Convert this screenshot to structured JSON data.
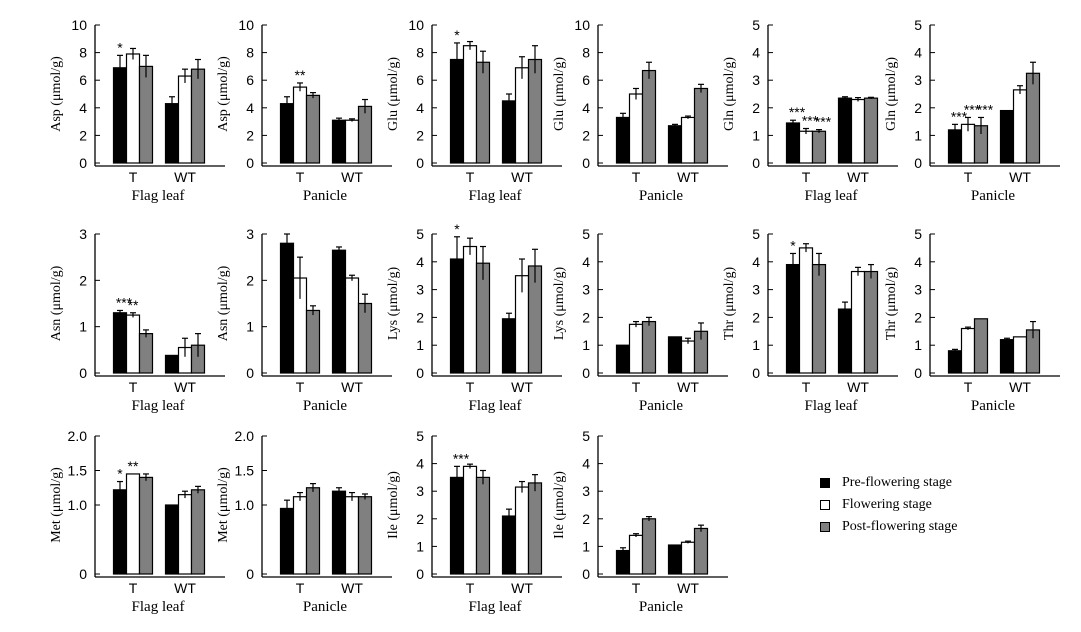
{
  "colors": {
    "pre": "#000000",
    "flowering": "#ffffff",
    "post": "#808080",
    "stroke": "#000000"
  },
  "legend": [
    {
      "key": "pre",
      "label": "Pre-flowering stage"
    },
    {
      "key": "flowering",
      "label": "Flowering stage"
    },
    {
      "key": "post",
      "label": "Post-flowering stage"
    }
  ],
  "chart_data": [
    {
      "type": "bar",
      "ylabel": "Asp (μmol/g)",
      "xlabel": "Flag leaf",
      "categories": [
        "T",
        "WT"
      ],
      "ylim": [
        0,
        10
      ],
      "yticks": [
        0,
        2,
        4,
        6,
        8,
        10
      ],
      "series": [
        {
          "name": "Pre-flowering stage",
          "values": [
            6.9,
            4.3
          ],
          "errors": [
            0.9,
            0.5
          ]
        },
        {
          "name": "Flowering stage",
          "values": [
            7.9,
            6.3
          ],
          "errors": [
            0.4,
            0.5
          ]
        },
        {
          "name": "Post-flowering stage",
          "values": [
            7.0,
            6.8
          ],
          "errors": [
            0.8,
            0.7
          ]
        }
      ],
      "annotations": [
        {
          "category": 0,
          "series": 0,
          "text": "*"
        }
      ]
    },
    {
      "type": "bar",
      "ylabel": "Asp (μmol/g)",
      "xlabel": "Panicle",
      "categories": [
        "T",
        "WT"
      ],
      "ylim": [
        0,
        10
      ],
      "yticks": [
        0,
        2,
        4,
        6,
        8,
        10
      ],
      "series": [
        {
          "name": "Pre-flowering stage",
          "values": [
            4.3,
            3.1
          ],
          "errors": [
            0.5,
            0.15
          ]
        },
        {
          "name": "Flowering stage",
          "values": [
            5.5,
            3.1
          ],
          "errors": [
            0.3,
            0.1
          ]
        },
        {
          "name": "Post-flowering stage",
          "values": [
            4.9,
            4.1
          ],
          "errors": [
            0.2,
            0.5
          ]
        }
      ],
      "annotations": [
        {
          "category": 0,
          "series": 1,
          "text": "**"
        }
      ]
    },
    {
      "type": "bar",
      "ylabel": "Glu (μmol/g)",
      "xlabel": "Flag leaf",
      "categories": [
        "T",
        "WT"
      ],
      "ylim": [
        0,
        10
      ],
      "yticks": [
        0,
        2,
        4,
        6,
        8,
        10
      ],
      "series": [
        {
          "name": "Pre-flowering stage",
          "values": [
            7.5,
            4.5
          ],
          "errors": [
            1.2,
            0.5
          ]
        },
        {
          "name": "Flowering stage",
          "values": [
            8.5,
            6.9
          ],
          "errors": [
            0.3,
            0.8
          ]
        },
        {
          "name": "Post-flowering stage",
          "values": [
            7.3,
            7.5
          ],
          "errors": [
            0.8,
            1.0
          ]
        }
      ],
      "annotations": [
        {
          "category": 0,
          "series": 0,
          "text": "*"
        }
      ]
    },
    {
      "type": "bar",
      "ylabel": "Glu (μmol/g)",
      "xlabel": "Panicle",
      "categories": [
        "T",
        "WT"
      ],
      "ylim": [
        0,
        10
      ],
      "yticks": [
        0,
        2,
        4,
        6,
        8,
        10
      ],
      "series": [
        {
          "name": "Pre-flowering stage",
          "values": [
            3.3,
            2.7
          ],
          "errors": [
            0.3,
            0.1
          ]
        },
        {
          "name": "Flowering stage",
          "values": [
            5.0,
            3.3
          ],
          "errors": [
            0.4,
            0.1
          ]
        },
        {
          "name": "Post-flowering stage",
          "values": [
            6.7,
            5.4
          ],
          "errors": [
            0.6,
            0.3
          ]
        }
      ],
      "annotations": []
    },
    {
      "type": "bar",
      "ylabel": "Gln (μmol/g)",
      "xlabel": "Flag leaf",
      "categories": [
        "T",
        "WT"
      ],
      "ylim": [
        0,
        5
      ],
      "yticks": [
        0,
        1,
        2,
        3,
        4,
        5
      ],
      "series": [
        {
          "name": "Pre-flowering stage",
          "values": [
            1.45,
            2.35
          ],
          "errors": [
            0.1,
            0.05
          ]
        },
        {
          "name": "Flowering stage",
          "values": [
            1.15,
            2.3
          ],
          "errors": [
            0.1,
            0.07
          ]
        },
        {
          "name": "Post-flowering stage",
          "values": [
            1.15,
            2.35
          ],
          "errors": [
            0.06,
            0.03
          ]
        }
      ],
      "annotations": [
        {
          "category": 0,
          "series": 0,
          "text": "***"
        },
        {
          "category": 0,
          "series": 1,
          "text": "***"
        },
        {
          "category": 0,
          "series": 2,
          "text": "***"
        }
      ]
    },
    {
      "type": "bar",
      "ylabel": "Gln (μmol/g)",
      "xlabel": "Panicle",
      "categories": [
        "T",
        "WT"
      ],
      "ylim": [
        0,
        5
      ],
      "yticks": [
        0,
        1,
        2,
        3,
        4,
        5
      ],
      "series": [
        {
          "name": "Pre-flowering stage",
          "values": [
            1.2,
            1.9
          ],
          "errors": [
            0.2,
            0.0
          ]
        },
        {
          "name": "Flowering stage",
          "values": [
            1.4,
            2.65
          ],
          "errors": [
            0.25,
            0.15
          ]
        },
        {
          "name": "Post-flowering stage",
          "values": [
            1.35,
            3.25
          ],
          "errors": [
            0.3,
            0.4
          ]
        }
      ],
      "annotations": [
        {
          "category": 0,
          "series": 0,
          "text": "***"
        },
        {
          "category": 0,
          "series": 1,
          "text": "***"
        },
        {
          "category": 0,
          "series": 2,
          "text": "***"
        }
      ]
    },
    {
      "type": "bar",
      "ylabel": "Asn (μmol/g)",
      "xlabel": "Flag leaf",
      "categories": [
        "T",
        "WT"
      ],
      "ylim": [
        0,
        3
      ],
      "yticks": [
        0,
        1,
        2,
        3
      ],
      "series": [
        {
          "name": "Pre-flowering stage",
          "values": [
            1.3,
            0.38
          ],
          "errors": [
            0.05,
            0.0
          ]
        },
        {
          "name": "Flowering stage",
          "values": [
            1.25,
            0.55
          ],
          "errors": [
            0.05,
            0.2
          ]
        },
        {
          "name": "Post-flowering stage",
          "values": [
            0.85,
            0.6
          ],
          "errors": [
            0.08,
            0.25
          ]
        }
      ],
      "annotations": [
        {
          "category": 0,
          "series": 0,
          "text": "***"
        },
        {
          "category": 0,
          "series": 1,
          "text": "**"
        }
      ]
    },
    {
      "type": "bar",
      "ylabel": "Asn (μmol/g)",
      "xlabel": "Panicle",
      "categories": [
        "T",
        "WT"
      ],
      "ylim": [
        0,
        3
      ],
      "yticks": [
        0,
        1,
        2,
        3
      ],
      "series": [
        {
          "name": "Pre-flowering stage",
          "values": [
            2.8,
            2.65
          ],
          "errors": [
            0.2,
            0.07
          ]
        },
        {
          "name": "Flowering stage",
          "values": [
            2.05,
            2.05
          ],
          "errors": [
            0.45,
            0.06
          ]
        },
        {
          "name": "Post-flowering stage",
          "values": [
            1.35,
            1.5
          ],
          "errors": [
            0.1,
            0.2
          ]
        }
      ],
      "annotations": []
    },
    {
      "type": "bar",
      "ylabel": "Lys (μmol/g)",
      "xlabel": "Flag leaf",
      "categories": [
        "T",
        "WT"
      ],
      "ylim": [
        0,
        5
      ],
      "yticks": [
        0,
        1,
        2,
        3,
        4,
        5
      ],
      "series": [
        {
          "name": "Pre-flowering stage",
          "values": [
            4.1,
            1.95
          ],
          "errors": [
            0.8,
            0.2
          ]
        },
        {
          "name": "Flowering stage",
          "values": [
            4.55,
            3.5
          ],
          "errors": [
            0.3,
            0.6
          ]
        },
        {
          "name": "Post-flowering stage",
          "values": [
            3.95,
            3.85
          ],
          "errors": [
            0.6,
            0.6
          ]
        }
      ],
      "annotations": [
        {
          "category": 0,
          "series": 0,
          "text": "*"
        }
      ]
    },
    {
      "type": "bar",
      "ylabel": "Lys (μmol/g)",
      "xlabel": "Panicle",
      "categories": [
        "T",
        "WT"
      ],
      "ylim": [
        0,
        5
      ],
      "yticks": [
        0,
        1,
        2,
        3,
        4,
        5
      ],
      "series": [
        {
          "name": "Pre-flowering stage",
          "values": [
            1.0,
            1.3
          ],
          "errors": [
            0.0,
            0.0
          ]
        },
        {
          "name": "Flowering stage",
          "values": [
            1.75,
            1.15
          ],
          "errors": [
            0.1,
            0.1
          ]
        },
        {
          "name": "Post-flowering stage",
          "values": [
            1.85,
            1.5
          ],
          "errors": [
            0.15,
            0.3
          ]
        }
      ],
      "annotations": []
    },
    {
      "type": "bar",
      "ylabel": "Thr (μmol/g)",
      "xlabel": "Flag leaf",
      "categories": [
        "T",
        "WT"
      ],
      "ylim": [
        0,
        5
      ],
      "yticks": [
        0,
        1,
        2,
        3,
        4,
        5
      ],
      "series": [
        {
          "name": "Pre-flowering stage",
          "values": [
            3.9,
            2.3
          ],
          "errors": [
            0.4,
            0.25
          ]
        },
        {
          "name": "Flowering stage",
          "values": [
            4.5,
            3.65
          ],
          "errors": [
            0.15,
            0.15
          ]
        },
        {
          "name": "Post-flowering stage",
          "values": [
            3.9,
            3.65
          ],
          "errors": [
            0.4,
            0.25
          ]
        }
      ],
      "annotations": [
        {
          "category": 0,
          "series": 0,
          "text": "*"
        }
      ]
    },
    {
      "type": "bar",
      "ylabel": "Thr (μmol/g)",
      "xlabel": "Panicle",
      "categories": [
        "T",
        "WT"
      ],
      "ylim": [
        0,
        5
      ],
      "yticks": [
        0,
        1,
        2,
        3,
        4,
        5
      ],
      "series": [
        {
          "name": "Pre-flowering stage",
          "values": [
            0.8,
            1.2
          ],
          "errors": [
            0.05,
            0.05
          ]
        },
        {
          "name": "Flowering stage",
          "values": [
            1.6,
            1.3
          ],
          "errors": [
            0.05,
            0.0
          ]
        },
        {
          "name": "Post-flowering stage",
          "values": [
            1.95,
            1.55
          ],
          "errors": [
            0.0,
            0.3
          ]
        }
      ],
      "annotations": []
    },
    {
      "type": "bar",
      "ylabel": "Met (μmol/g)",
      "xlabel": "Flag leaf",
      "categories": [
        "T",
        "WT"
      ],
      "ylim": [
        0,
        2.0
      ],
      "yticks": [
        0,
        1.0,
        1.5,
        2.0
      ],
      "ytick_labels": [
        "0",
        "1.0",
        "1.5",
        "2.0"
      ],
      "series": [
        {
          "name": "Pre-flowering stage",
          "values": [
            1.22,
            1.0
          ],
          "errors": [
            0.12,
            0.0
          ]
        },
        {
          "name": "Flowering stage",
          "values": [
            1.45,
            1.15
          ],
          "errors": [
            0.0,
            0.05
          ]
        },
        {
          "name": "Post-flowering stage",
          "values": [
            1.4,
            1.22
          ],
          "errors": [
            0.05,
            0.05
          ]
        }
      ],
      "annotations": [
        {
          "category": 0,
          "series": 0,
          "text": "*"
        },
        {
          "category": 0,
          "series": 1,
          "text": "**"
        }
      ]
    },
    {
      "type": "bar",
      "ylabel": "Met (μmol/g)",
      "xlabel": "Panicle",
      "categories": [
        "T",
        "WT"
      ],
      "ylim": [
        0,
        2.0
      ],
      "yticks": [
        0,
        1.0,
        1.5,
        2.0
      ],
      "ytick_labels": [
        "0",
        "1.0",
        "1.5",
        "2.0"
      ],
      "series": [
        {
          "name": "Pre-flowering stage",
          "values": [
            0.95,
            1.2
          ],
          "errors": [
            0.12,
            0.05
          ]
        },
        {
          "name": "Flowering stage",
          "values": [
            1.12,
            1.12
          ],
          "errors": [
            0.06,
            0.06
          ]
        },
        {
          "name": "Post-flowering stage",
          "values": [
            1.25,
            1.12
          ],
          "errors": [
            0.06,
            0.04
          ]
        }
      ],
      "annotations": []
    },
    {
      "type": "bar",
      "ylabel": "Ile (μmol/g)",
      "xlabel": "Flag leaf",
      "categories": [
        "T",
        "WT"
      ],
      "ylim": [
        0,
        5
      ],
      "yticks": [
        0,
        1,
        2,
        3,
        4,
        5
      ],
      "series": [
        {
          "name": "Pre-flowering stage",
          "values": [
            3.5,
            2.1
          ],
          "errors": [
            0.4,
            0.25
          ]
        },
        {
          "name": "Flowering stage",
          "values": [
            3.9,
            3.15
          ],
          "errors": [
            0.08,
            0.2
          ]
        },
        {
          "name": "Post-flowering stage",
          "values": [
            3.5,
            3.3
          ],
          "errors": [
            0.25,
            0.3
          ]
        }
      ],
      "annotations": [
        {
          "category": 0,
          "series": 0,
          "text": "***"
        }
      ]
    },
    {
      "type": "bar",
      "ylabel": "Ile (μmol/g)",
      "xlabel": "Panicle",
      "categories": [
        "T",
        "WT"
      ],
      "ylim": [
        0,
        5
      ],
      "yticks": [
        0,
        1,
        2,
        3,
        4,
        5
      ],
      "series": [
        {
          "name": "Pre-flowering stage",
          "values": [
            0.85,
            1.05
          ],
          "errors": [
            0.1,
            0.0
          ]
        },
        {
          "name": "Flowering stage",
          "values": [
            1.4,
            1.15
          ],
          "errors": [
            0.06,
            0.04
          ]
        },
        {
          "name": "Post-flowering stage",
          "values": [
            2.0,
            1.65
          ],
          "errors": [
            0.08,
            0.12
          ]
        }
      ],
      "annotations": []
    }
  ]
}
